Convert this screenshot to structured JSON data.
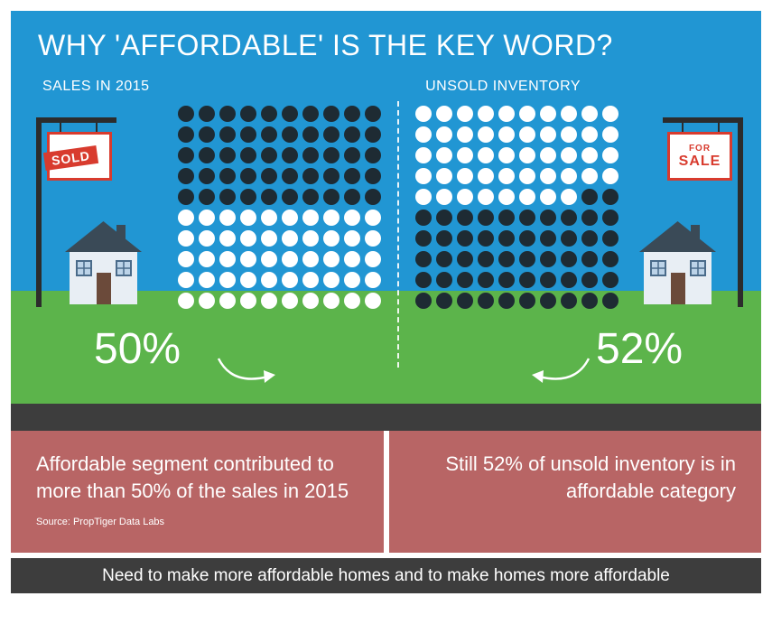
{
  "title": "WHY 'AFFORDABLE' IS THE KEY WORD?",
  "left_subtitle": "SALES IN 2015",
  "right_subtitle": "UNSOLD INVENTORY",
  "left_percent": "50%",
  "right_percent": "52%",
  "sign_left": {
    "type": "sold",
    "text": "SOLD"
  },
  "sign_right": {
    "type": "for_sale",
    "for_text": "FOR",
    "sale_text": "SALE"
  },
  "blurb_left": "Affordable segment contributed to more than 50% of the sales in 2015",
  "blurb_right": "Still 52% of unsold inventory is in affordable category",
  "source": "Source: PropTiger Data Labs",
  "footer": "Need to make more affordable homes and to make homes more affordable",
  "colors": {
    "sky": "#2196d3",
    "grass": "#5cb44b",
    "dark": "#3d3d3d",
    "box": "#b86565",
    "dot_dark": "#1e2b33",
    "dot_light": "#ffffff",
    "accent_red": "#d83b2e"
  },
  "grid": {
    "cols": 10,
    "rows": 10,
    "dot_size": 18,
    "gap": 3,
    "left_dark_count": 50,
    "right_dark_count": 52,
    "note": "left grid fills dark from TOP, right grid fills light from TOP (i.e., dark from BOTTOM)"
  },
  "house": {
    "wall": "#e8eef4",
    "roof": "#3a4a57",
    "door": "#6b4a3a",
    "window_frame": "#4a6b8a",
    "window_pane": "#bcd3e8"
  }
}
